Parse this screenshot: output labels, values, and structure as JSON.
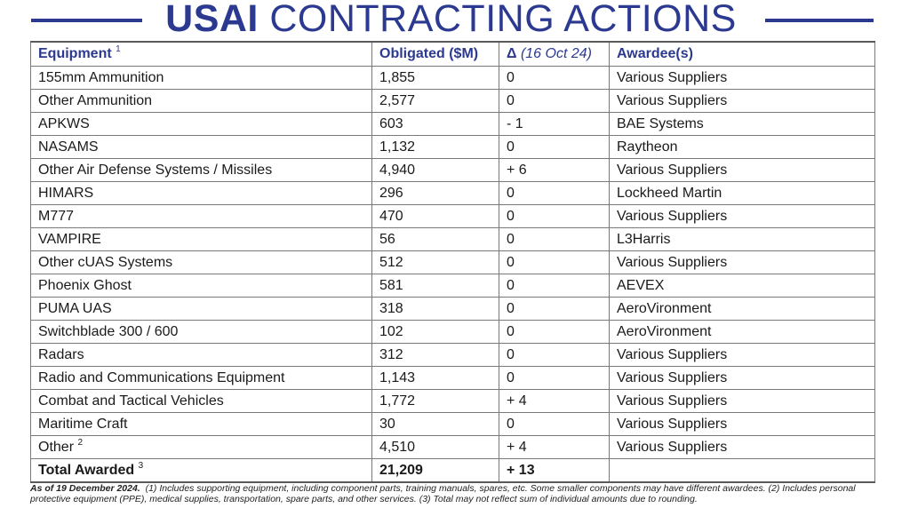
{
  "title": {
    "bold": "USAI",
    "rest": "CONTRACTING ACTIONS"
  },
  "colors": {
    "accent": "#2b3990",
    "border": "#7a7a7a"
  },
  "header": {
    "equipment": "Equipment",
    "equipment_note": "1",
    "obligated": "Obligated ($M)",
    "delta_symbol": "Δ",
    "delta_date": "(16 Oct 24)",
    "awardees": "Awardee(s)"
  },
  "rows": [
    {
      "equipment": "155mm Ammunition",
      "note": "",
      "obligated": "1,855",
      "delta": "0",
      "awardee": "Various Suppliers"
    },
    {
      "equipment": "Other Ammunition",
      "note": "",
      "obligated": "2,577",
      "delta": "0",
      "awardee": "Various Suppliers"
    },
    {
      "equipment": "APKWS",
      "note": "",
      "obligated": "603",
      "delta": "- 1",
      "awardee": "BAE Systems"
    },
    {
      "equipment": "NASAMS",
      "note": "",
      "obligated": "1,132",
      "delta": "0",
      "awardee": "Raytheon"
    },
    {
      "equipment": "Other Air Defense Systems / Missiles",
      "note": "",
      "obligated": "4,940",
      "delta": "+ 6",
      "awardee": "Various Suppliers"
    },
    {
      "equipment": "HIMARS",
      "note": "",
      "obligated": "296",
      "delta": "0",
      "awardee": "Lockheed Martin"
    },
    {
      "equipment": "M777",
      "note": "",
      "obligated": "470",
      "delta": "0",
      "awardee": "Various Suppliers"
    },
    {
      "equipment": "VAMPIRE",
      "note": "",
      "obligated": "56",
      "delta": "0",
      "awardee": "L3Harris"
    },
    {
      "equipment": "Other cUAS Systems",
      "note": "",
      "obligated": "512",
      "delta": "0",
      "awardee": "Various Suppliers"
    },
    {
      "equipment": "Phoenix Ghost",
      "note": "",
      "obligated": "581",
      "delta": "0",
      "awardee": "AEVEX"
    },
    {
      "equipment": "PUMA UAS",
      "note": "",
      "obligated": "318",
      "delta": "0",
      "awardee": "AeroVironment"
    },
    {
      "equipment": "Switchblade 300 / 600",
      "note": "",
      "obligated": "102",
      "delta": "0",
      "awardee": "AeroVironment"
    },
    {
      "equipment": "Radars",
      "note": "",
      "obligated": "312",
      "delta": "0",
      "awardee": "Various Suppliers"
    },
    {
      "equipment": "Radio and Communications Equipment",
      "note": "",
      "obligated": "1,143",
      "delta": "0",
      "awardee": "Various Suppliers"
    },
    {
      "equipment": "Combat and Tactical Vehicles",
      "note": "",
      "obligated": "1,772",
      "delta": "+ 4",
      "awardee": "Various Suppliers"
    },
    {
      "equipment": "Maritime Craft",
      "note": "",
      "obligated": "30",
      "delta": "0",
      "awardee": "Various Suppliers"
    },
    {
      "equipment": "Other",
      "note": "2",
      "obligated": "4,510",
      "delta": "+ 4",
      "awardee": "Various Suppliers"
    }
  ],
  "total": {
    "label": "Total Awarded",
    "note": "3",
    "obligated": "21,209",
    "delta": "+ 13",
    "awardee": ""
  },
  "footnote": {
    "date": "As of 19 December 2024.",
    "text": "(1) Includes supporting equipment, including component parts, training manuals, spares, etc. Some smaller components may have different awardees.  (2) Includes personal protective equipment (PPE), medical supplies, transportation, spare parts, and other services.  (3) Total may not reflect sum of individual amounts due to rounding."
  }
}
